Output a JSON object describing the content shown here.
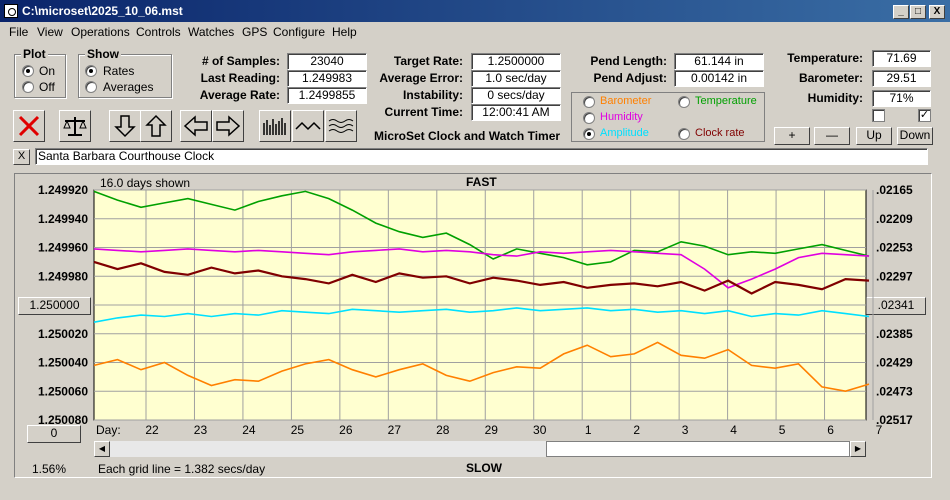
{
  "window": {
    "title": "C:\\microset\\2025_10_06.mst",
    "minimize": "_",
    "maximize": "□",
    "close": "X"
  },
  "menu": [
    "File",
    "View",
    "Operations",
    "Controls",
    "Watches",
    "GPS",
    "Configure",
    "Help"
  ],
  "plot_group": {
    "title": "Plot",
    "options": [
      "On",
      "Off"
    ],
    "selected": "On"
  },
  "show_group": {
    "title": "Show",
    "options": [
      "Rates",
      "Averages"
    ],
    "selected": "Rates"
  },
  "stats": {
    "samples_label": "# of Samples:",
    "samples": "23040",
    "last_label": "Last Reading:",
    "last": "1.249983",
    "avg_rate_label": "Average Rate:",
    "avg_rate": "1.2499855"
  },
  "rates": {
    "target_label": "Target Rate:",
    "target": "1.2500000",
    "avg_err_label": "Average Error:",
    "avg_err": "1.0 sec/day",
    "instab_label": "Instability:",
    "instab": "0 secs/day",
    "time_label": "Current Time:",
    "time": "12:00:41 AM"
  },
  "app_name": "MicroSet Clock and Watch Timer",
  "pend": {
    "length_label": "Pend Length:",
    "length": "61.144 in",
    "adjust_label": "Pend Adjust:",
    "adjust": "0.00142 in"
  },
  "sensor_options": [
    {
      "label": "Barometer",
      "color": "#ff8000",
      "selected": false
    },
    {
      "label": "Temperature",
      "color": "#00a000",
      "selected": false
    },
    {
      "label": "Humidity",
      "color": "#e000e0",
      "selected": false
    },
    {
      "label": "Amplitude",
      "color": "#00e0ff",
      "selected": true
    },
    {
      "label": "Clock rate",
      "color": "#800000",
      "selected": false
    }
  ],
  "env": {
    "temp_label": "Temperature:",
    "temp": "71.69",
    "baro_label": "Barometer:",
    "baro": "29.51",
    "hum_label": "Humidity:",
    "hum": "71%"
  },
  "checkboxes": [
    false,
    true
  ],
  "adjust_buttons": {
    "plus": "+",
    "minus": "—",
    "up": "Up",
    "down": "Down"
  },
  "clock_name": "Santa Barbara Courthouse Clock",
  "clear_button": "X",
  "chart_data": {
    "type": "line",
    "top_label": "FAST",
    "bottom_label": "SLOW",
    "days_shown": "16.0 days shown",
    "grid_note": "Each grid line = 1.382 secs/day",
    "left_scale": [
      "1.249920",
      "1.249940",
      "1.249960",
      "1.249980",
      "1.250000",
      "1.250020",
      "1.250040",
      "1.250060",
      "1.250080"
    ],
    "left_center_button": "1.250000",
    "right_scale": [
      ".02165",
      ".02209",
      ".02253",
      ".02297",
      ".02341",
      ".02385",
      ".02429",
      ".02473",
      ".02517"
    ],
    "right_center_button": ".02341",
    "x_axis_label": "Day:",
    "days": [
      "22",
      "23",
      "24",
      "25",
      "26",
      "27",
      "28",
      "29",
      "30",
      "1",
      "2",
      "3",
      "4",
      "5",
      "6",
      "7"
    ],
    "ylim": [
      1.25008,
      1.24992
    ],
    "zoom_button": "0",
    "percent": "1.56%",
    "series": [
      {
        "name": "Temperature",
        "color": "#00a000",
        "values": [
          1.249921,
          1.249927,
          1.249932,
          1.249929,
          1.249926,
          1.24993,
          1.249934,
          1.249928,
          1.249924,
          1.249921,
          1.249926,
          1.249934,
          1.249943,
          1.249949,
          1.249953,
          1.24995,
          1.249958,
          1.249968,
          1.249961,
          1.249964,
          1.249967,
          1.249972,
          1.24997,
          1.249962,
          1.249963,
          1.249956,
          1.249959,
          1.249965,
          1.249963,
          1.249964,
          1.249961,
          1.249958,
          1.249962,
          1.249966
        ]
      },
      {
        "name": "Humidity",
        "color": "#e000e0",
        "values": [
          1.249961,
          1.249962,
          1.249963,
          1.249962,
          1.249961,
          1.249962,
          1.249963,
          1.249962,
          1.249963,
          1.249964,
          1.249965,
          1.249963,
          1.249962,
          1.249961,
          1.249963,
          1.249962,
          1.249963,
          1.249965,
          1.249966,
          1.249963,
          1.249964,
          1.249963,
          1.249962,
          1.249963,
          1.249964,
          1.249965,
          1.249975,
          1.249988,
          1.249982,
          1.249975,
          1.249967,
          1.249964,
          1.249965,
          1.249966
        ]
      },
      {
        "name": "Clock rate",
        "color": "#800000",
        "values": [
          1.24997,
          1.249975,
          1.249971,
          1.249977,
          1.249979,
          1.249974,
          1.249978,
          1.249976,
          1.24998,
          1.249982,
          1.249985,
          1.249979,
          1.249984,
          1.249978,
          1.249981,
          1.24998,
          1.249985,
          1.249981,
          1.249983,
          1.249986,
          1.249984,
          1.249988,
          1.249986,
          1.249985,
          1.249987,
          1.249984,
          1.24999,
          1.249983,
          1.249992,
          1.249984,
          1.249986,
          1.249989,
          1.249982,
          1.249983
        ]
      },
      {
        "name": "Amplitude",
        "color": "#00e0ff",
        "values": [
          1.250012,
          1.250009,
          1.250007,
          1.250008,
          1.250006,
          1.250008,
          1.250006,
          1.250007,
          1.250004,
          1.250005,
          1.250006,
          1.250003,
          1.250004,
          1.250005,
          1.250004,
          1.250003,
          1.250005,
          1.250004,
          1.250002,
          1.250004,
          1.250003,
          1.250002,
          1.250004,
          1.250003,
          1.250005,
          1.250004,
          1.250006,
          1.250004,
          1.250008,
          1.250006,
          1.250007,
          1.250004,
          1.250006,
          1.250008
        ]
      },
      {
        "name": "Barometer",
        "color": "#ff8000",
        "values": [
          1.250042,
          1.250038,
          1.250045,
          1.25004,
          1.250049,
          1.250056,
          1.250052,
          1.250053,
          1.250046,
          1.250041,
          1.250038,
          1.250045,
          1.25005,
          1.250045,
          1.250041,
          1.250049,
          1.250053,
          1.250047,
          1.250043,
          1.250044,
          1.250034,
          1.250028,
          1.250036,
          1.250034,
          1.250026,
          1.250035,
          1.250037,
          1.250031,
          1.250042,
          1.250044,
          1.250041,
          1.250057,
          1.25006,
          1.250055
        ]
      }
    ]
  }
}
